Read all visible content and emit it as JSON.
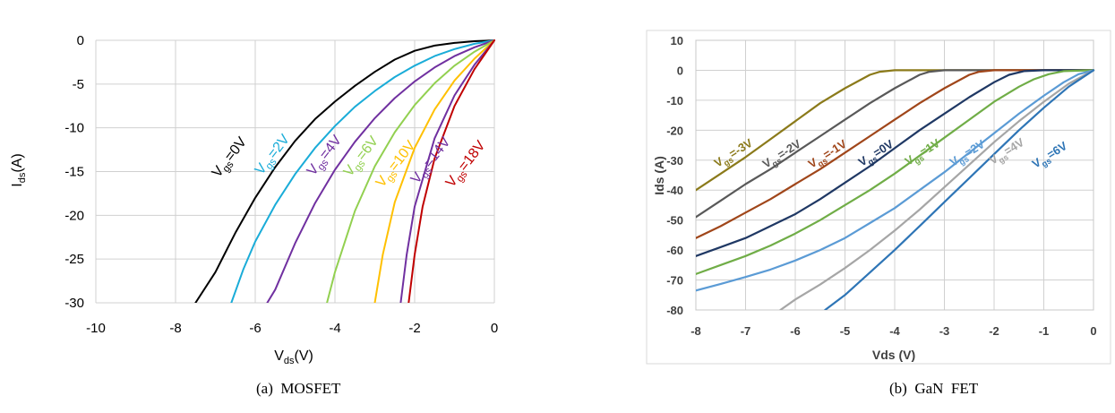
{
  "chart_data": [
    {
      "type": "line",
      "title": "",
      "xlabel": "V",
      "xlabel_sub": "ds",
      "xlabel_unit": "(V)",
      "ylabel": "I",
      "ylabel_sub": "ds",
      "ylabel_unit": "(A)",
      "xlim": [
        -10,
        0
      ],
      "ylim": [
        -30,
        0
      ],
      "xticks": [
        "-10",
        "-8",
        "-6",
        "-4",
        "-2",
        "0"
      ],
      "yticks": [
        "0",
        "-5",
        "-10",
        "-15",
        "-20",
        "-25",
        "-30"
      ],
      "grid": true,
      "caption": "(a)  MOSFET",
      "series": [
        {
          "name": "V",
          "sub": "gs",
          "suffix": "=0V",
          "color": "#000000",
          "x": [
            0,
            -0.5,
            -1,
            -1.5,
            -2,
            -2.5,
            -3,
            -3.5,
            -4,
            -4.5,
            -5,
            -5.5,
            -6,
            -6.5,
            -7,
            -7.5
          ],
          "y": [
            0,
            -0.1,
            -0.3,
            -0.6,
            -1.2,
            -2.2,
            -3.6,
            -5.2,
            -7,
            -9,
            -11.5,
            -14.5,
            -18,
            -22,
            -26.5,
            -30
          ]
        },
        {
          "name": "V",
          "sub": "gs",
          "suffix": "=2V",
          "color": "#1AACD8",
          "x": [
            0,
            -0.5,
            -1,
            -1.5,
            -2,
            -2.5,
            -3,
            -3.5,
            -4,
            -4.5,
            -5,
            -5.5,
            -6,
            -6.3,
            -6.6
          ],
          "y": [
            0,
            -0.4,
            -1,
            -1.8,
            -2.9,
            -4.2,
            -5.8,
            -7.6,
            -9.8,
            -12.3,
            -15.3,
            -18.8,
            -23,
            -26.2,
            -30
          ]
        },
        {
          "name": "V",
          "sub": "gs",
          "suffix": "=4V",
          "color": "#7030A0",
          "x": [
            0,
            -0.5,
            -1,
            -1.5,
            -2,
            -2.5,
            -3,
            -3.5,
            -4,
            -4.5,
            -5,
            -5.5,
            -5.7
          ],
          "y": [
            0,
            -0.8,
            -1.8,
            -3.1,
            -4.7,
            -6.6,
            -8.9,
            -11.6,
            -14.8,
            -18.6,
            -23.2,
            -28.5,
            -30
          ]
        },
        {
          "name": "V",
          "sub": "gs",
          "suffix": "=6V",
          "color": "#92D050",
          "x": [
            0,
            -0.5,
            -1,
            -1.5,
            -2,
            -2.5,
            -3,
            -3.5,
            -4,
            -4.2
          ],
          "y": [
            0,
            -1.3,
            -2.9,
            -4.9,
            -7.4,
            -10.5,
            -14.4,
            -19.5,
            -26.5,
            -30
          ]
        },
        {
          "name": "V",
          "sub": "gs",
          "suffix": "=10V",
          "color": "#FFC000",
          "x": [
            0,
            -0.5,
            -1,
            -1.5,
            -2,
            -2.5,
            -2.8,
            -3.0
          ],
          "y": [
            0,
            -2.1,
            -4.6,
            -7.9,
            -12.3,
            -18.5,
            -24.5,
            -30
          ]
        },
        {
          "name": "V",
          "sub": "gs",
          "suffix": "=14V",
          "color": "#7030A0",
          "x": [
            0,
            -0.5,
            -1,
            -1.5,
            -2,
            -2.2,
            -2.35
          ],
          "y": [
            0,
            -2.8,
            -6.3,
            -11.2,
            -19,
            -24.5,
            -30
          ]
        },
        {
          "name": "V",
          "sub": "gs",
          "suffix": "=18V",
          "color": "#C00000",
          "x": [
            0,
            -0.5,
            -1,
            -1.5,
            -1.8,
            -2.0,
            -2.15
          ],
          "y": [
            0,
            -3.3,
            -7.5,
            -13.5,
            -19,
            -24.5,
            -30
          ]
        }
      ]
    },
    {
      "type": "line",
      "title": "",
      "xlabel": "Vds (V)",
      "ylabel": "Ids (A)",
      "xlim": [
        -8,
        0
      ],
      "ylim": [
        -80,
        10
      ],
      "xticks": [
        "-8",
        "-7",
        "-6",
        "-5",
        "-4",
        "-3",
        "-2",
        "-1",
        "0"
      ],
      "yticks": [
        "10",
        "0",
        "-10",
        "-20",
        "-30",
        "-40",
        "-50",
        "-60",
        "-70",
        "-80"
      ],
      "grid": true,
      "caption": "(b)  GaN  FET",
      "series": [
        {
          "name": "V",
          "sub": "gs",
          "suffix": "=-3V",
          "color": "#8B7A1A",
          "x": [
            0,
            -1,
            -2,
            -3,
            -4,
            -4.3,
            -4.5,
            -5,
            -5.5,
            -6,
            -6.5,
            -7,
            -7.5,
            -8
          ],
          "y": [
            0,
            0,
            0,
            0,
            0,
            -0.5,
            -1.5,
            -6,
            -11,
            -17,
            -23,
            -29,
            -34.5,
            -40
          ]
        },
        {
          "name": "V",
          "sub": "gs",
          "suffix": "=-2V",
          "color": "#595959",
          "x": [
            0,
            -1,
            -2,
            -3,
            -3.3,
            -3.5,
            -4,
            -4.5,
            -5,
            -5.5,
            -6,
            -6.5,
            -7,
            -7.5,
            -8
          ],
          "y": [
            0,
            0,
            0,
            0,
            -0.5,
            -1.5,
            -6,
            -11,
            -16.5,
            -22,
            -27.5,
            -33,
            -38,
            -43.5,
            -49
          ]
        },
        {
          "name": "V",
          "sub": "gs",
          "suffix": "=-1V",
          "color": "#A0461A",
          "x": [
            0,
            -1,
            -2,
            -2.3,
            -2.5,
            -3,
            -3.5,
            -4,
            -4.5,
            -5,
            -5.5,
            -6,
            -6.5,
            -7,
            -7.5,
            -8
          ],
          "y": [
            0,
            0,
            0,
            -0.5,
            -1.5,
            -6,
            -11,
            -16.5,
            -22,
            -27.5,
            -33,
            -38,
            -43,
            -47.5,
            -52,
            -56
          ]
        },
        {
          "name": "V",
          "sub": "gs",
          "suffix": "=0V",
          "color": "#1F3864",
          "x": [
            0,
            -1,
            -1.4,
            -1.7,
            -2,
            -2.5,
            -3,
            -3.5,
            -4,
            -4.5,
            -5,
            -5.5,
            -6,
            -6.5,
            -7,
            -7.5,
            -8
          ],
          "y": [
            0,
            0,
            -0.3,
            -1.5,
            -4,
            -9,
            -14.5,
            -20,
            -26,
            -32,
            -37.5,
            -43,
            -48,
            -52,
            -56,
            -59,
            -62
          ]
        },
        {
          "name": "V",
          "sub": "gs",
          "suffix": "=1V",
          "color": "#70AD47",
          "x": [
            0,
            -0.6,
            -0.9,
            -1.2,
            -1.5,
            -2,
            -2.5,
            -3,
            -3.5,
            -4,
            -4.5,
            -5,
            -5.5,
            -6,
            -6.5,
            -7,
            -7.5,
            -8
          ],
          "y": [
            0,
            -0.3,
            -1.3,
            -3,
            -5.5,
            -10.5,
            -16.5,
            -22.5,
            -28.5,
            -34.5,
            -40,
            -45,
            -50,
            -54.5,
            -58.5,
            -62,
            -65,
            -68
          ]
        },
        {
          "name": "V",
          "sub": "gs",
          "suffix": "=2V",
          "color": "#5B9BD5",
          "x": [
            0,
            -0.3,
            -0.6,
            -1,
            -1.5,
            -2,
            -2.5,
            -3,
            -3.5,
            -4,
            -4.5,
            -5,
            -5.5,
            -6,
            -6.5,
            -7,
            -7.5,
            -8
          ],
          "y": [
            0,
            -1.3,
            -4,
            -8.5,
            -14.5,
            -21,
            -27.5,
            -34,
            -40,
            -46,
            -51,
            -56,
            -60,
            -63.5,
            -66.5,
            -69,
            -71.3,
            -73.5
          ]
        },
        {
          "name": "V",
          "sub": "gs",
          "suffix": "=4V",
          "color": "#A6A6A6",
          "x": [
            0,
            -0.5,
            -1,
            -1.5,
            -2,
            -2.5,
            -3,
            -3.5,
            -4,
            -4.5,
            -5,
            -5.5,
            -6,
            -6.3
          ],
          "y": [
            0,
            -4.5,
            -10.5,
            -17,
            -24,
            -31.5,
            -39,
            -46.5,
            -53.5,
            -60,
            -66,
            -71.5,
            -76.5,
            -80
          ]
        },
        {
          "name": "V",
          "sub": "gs",
          "suffix": "=6V",
          "color": "#2E75B6",
          "x": [
            0,
            -0.5,
            -1,
            -1.5,
            -2,
            -2.5,
            -3,
            -3.5,
            -4,
            -4.5,
            -5,
            -5.4
          ],
          "y": [
            0,
            -5.5,
            -12.5,
            -20,
            -28,
            -36,
            -44,
            -52,
            -60,
            -67.5,
            -75,
            -80
          ]
        }
      ]
    }
  ]
}
